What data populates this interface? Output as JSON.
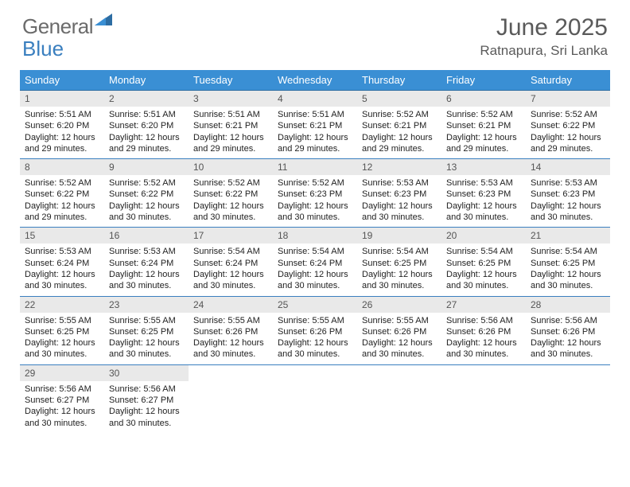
{
  "brand": {
    "general": "General",
    "blue": "Blue"
  },
  "title": "June 2025",
  "subtitle": "Ratnapura, Sri Lanka",
  "colors": {
    "header_bg": "#3a8fd4",
    "header_text": "#ffffff",
    "divider": "#3a7fbf",
    "daynum_bg": "#e9e9e9",
    "body_text": "#222222",
    "title_text": "#5a5a5a"
  },
  "weekdays": [
    "Sunday",
    "Monday",
    "Tuesday",
    "Wednesday",
    "Thursday",
    "Friday",
    "Saturday"
  ],
  "days": [
    {
      "n": 1,
      "sr": "5:51 AM",
      "ss": "6:20 PM",
      "dl": "12 hours and 29 minutes."
    },
    {
      "n": 2,
      "sr": "5:51 AM",
      "ss": "6:20 PM",
      "dl": "12 hours and 29 minutes."
    },
    {
      "n": 3,
      "sr": "5:51 AM",
      "ss": "6:21 PM",
      "dl": "12 hours and 29 minutes."
    },
    {
      "n": 4,
      "sr": "5:51 AM",
      "ss": "6:21 PM",
      "dl": "12 hours and 29 minutes."
    },
    {
      "n": 5,
      "sr": "5:52 AM",
      "ss": "6:21 PM",
      "dl": "12 hours and 29 minutes."
    },
    {
      "n": 6,
      "sr": "5:52 AM",
      "ss": "6:21 PM",
      "dl": "12 hours and 29 minutes."
    },
    {
      "n": 7,
      "sr": "5:52 AM",
      "ss": "6:22 PM",
      "dl": "12 hours and 29 minutes."
    },
    {
      "n": 8,
      "sr": "5:52 AM",
      "ss": "6:22 PM",
      "dl": "12 hours and 29 minutes."
    },
    {
      "n": 9,
      "sr": "5:52 AM",
      "ss": "6:22 PM",
      "dl": "12 hours and 30 minutes."
    },
    {
      "n": 10,
      "sr": "5:52 AM",
      "ss": "6:22 PM",
      "dl": "12 hours and 30 minutes."
    },
    {
      "n": 11,
      "sr": "5:52 AM",
      "ss": "6:23 PM",
      "dl": "12 hours and 30 minutes."
    },
    {
      "n": 12,
      "sr": "5:53 AM",
      "ss": "6:23 PM",
      "dl": "12 hours and 30 minutes."
    },
    {
      "n": 13,
      "sr": "5:53 AM",
      "ss": "6:23 PM",
      "dl": "12 hours and 30 minutes."
    },
    {
      "n": 14,
      "sr": "5:53 AM",
      "ss": "6:23 PM",
      "dl": "12 hours and 30 minutes."
    },
    {
      "n": 15,
      "sr": "5:53 AM",
      "ss": "6:24 PM",
      "dl": "12 hours and 30 minutes."
    },
    {
      "n": 16,
      "sr": "5:53 AM",
      "ss": "6:24 PM",
      "dl": "12 hours and 30 minutes."
    },
    {
      "n": 17,
      "sr": "5:54 AM",
      "ss": "6:24 PM",
      "dl": "12 hours and 30 minutes."
    },
    {
      "n": 18,
      "sr": "5:54 AM",
      "ss": "6:24 PM",
      "dl": "12 hours and 30 minutes."
    },
    {
      "n": 19,
      "sr": "5:54 AM",
      "ss": "6:25 PM",
      "dl": "12 hours and 30 minutes."
    },
    {
      "n": 20,
      "sr": "5:54 AM",
      "ss": "6:25 PM",
      "dl": "12 hours and 30 minutes."
    },
    {
      "n": 21,
      "sr": "5:54 AM",
      "ss": "6:25 PM",
      "dl": "12 hours and 30 minutes."
    },
    {
      "n": 22,
      "sr": "5:55 AM",
      "ss": "6:25 PM",
      "dl": "12 hours and 30 minutes."
    },
    {
      "n": 23,
      "sr": "5:55 AM",
      "ss": "6:25 PM",
      "dl": "12 hours and 30 minutes."
    },
    {
      "n": 24,
      "sr": "5:55 AM",
      "ss": "6:26 PM",
      "dl": "12 hours and 30 minutes."
    },
    {
      "n": 25,
      "sr": "5:55 AM",
      "ss": "6:26 PM",
      "dl": "12 hours and 30 minutes."
    },
    {
      "n": 26,
      "sr": "5:55 AM",
      "ss": "6:26 PM",
      "dl": "12 hours and 30 minutes."
    },
    {
      "n": 27,
      "sr": "5:56 AM",
      "ss": "6:26 PM",
      "dl": "12 hours and 30 minutes."
    },
    {
      "n": 28,
      "sr": "5:56 AM",
      "ss": "6:26 PM",
      "dl": "12 hours and 30 minutes."
    },
    {
      "n": 29,
      "sr": "5:56 AM",
      "ss": "6:27 PM",
      "dl": "12 hours and 30 minutes."
    },
    {
      "n": 30,
      "sr": "5:56 AM",
      "ss": "6:27 PM",
      "dl": "12 hours and 30 minutes."
    }
  ],
  "labels": {
    "sunrise": "Sunrise:",
    "sunset": "Sunset:",
    "daylight": "Daylight:"
  }
}
